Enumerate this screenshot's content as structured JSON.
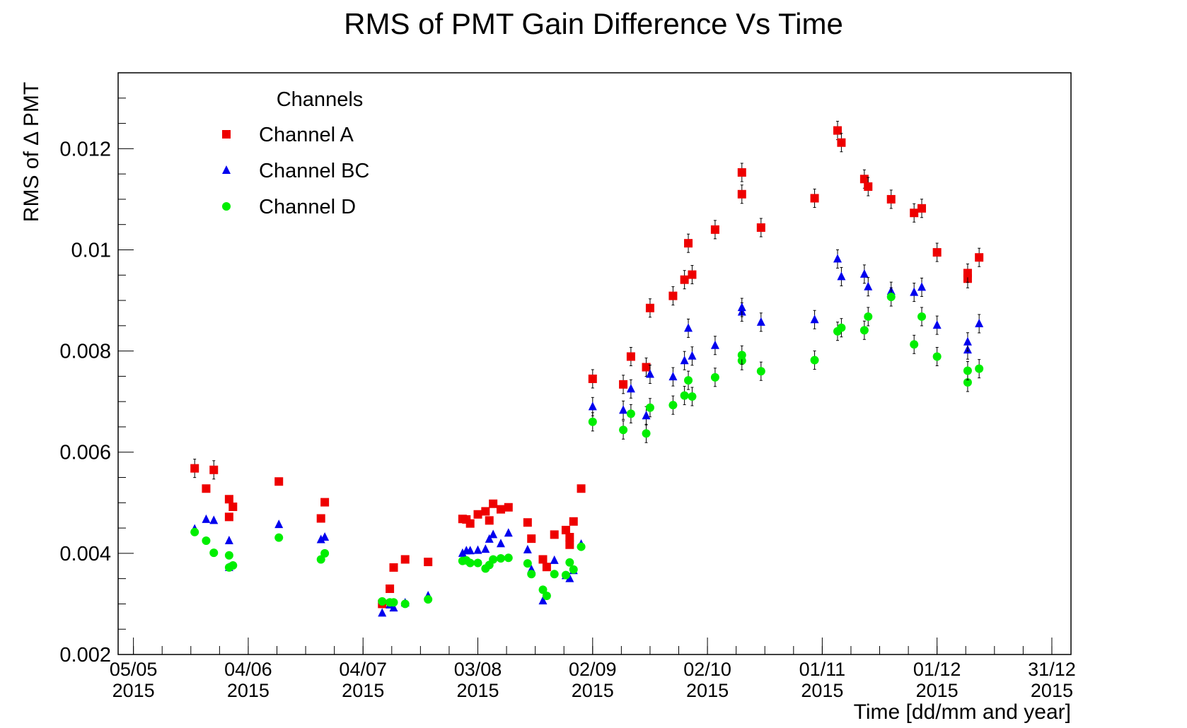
{
  "chart_data": {
    "type": "scatter",
    "title": "RMS of PMT Gain Difference Vs Time",
    "xlabel": "Time [dd/mm and year]",
    "ylabel": "RMS of Δ PMT",
    "x_scale": "date",
    "xlim": [
      "2015-05-01",
      "2016-01-05"
    ],
    "ylim": [
      0.002,
      0.0135
    ],
    "y_ticks": [
      "0.002",
      "0.004",
      "0.006",
      "0.008",
      "0.01",
      "0.012"
    ],
    "x_ticks": [
      {
        "date": "2015-05-05",
        "label": "05/05",
        "year": "2015"
      },
      {
        "date": "2015-06-04",
        "label": "04/06",
        "year": "2015"
      },
      {
        "date": "2015-07-04",
        "label": "04/07",
        "year": "2015"
      },
      {
        "date": "2015-08-03",
        "label": "03/08",
        "year": "2015"
      },
      {
        "date": "2015-09-02",
        "label": "02/09",
        "year": "2015"
      },
      {
        "date": "2015-10-02",
        "label": "02/10",
        "year": "2015"
      },
      {
        "date": "2015-11-01",
        "label": "01/11",
        "year": "2015"
      },
      {
        "date": "2015-12-01",
        "label": "01/12",
        "year": "2015"
      },
      {
        "date": "2015-12-31",
        "label": "31/12",
        "year": "2015"
      }
    ],
    "grid": false,
    "legend": {
      "title": "Channels",
      "placement": "top-left"
    },
    "series": [
      {
        "name": "Channel A",
        "color": "#ee0000",
        "marker": "square",
        "points": [
          [
            "2015-05-21",
            0.00568
          ],
          [
            "2015-05-24",
            0.00528
          ],
          [
            "2015-05-26",
            0.00565
          ],
          [
            "2015-05-30",
            0.00472
          ],
          [
            "2015-05-30",
            0.00507
          ],
          [
            "2015-05-31",
            0.00492
          ],
          [
            "2015-06-12",
            0.00542
          ],
          [
            "2015-06-23",
            0.00469
          ],
          [
            "2015-06-24",
            0.00501
          ],
          [
            "2015-07-09",
            0.003
          ],
          [
            "2015-07-11",
            0.0033
          ],
          [
            "2015-07-12",
            0.00372
          ],
          [
            "2015-07-15",
            0.00388
          ],
          [
            "2015-07-21",
            0.00383
          ],
          [
            "2015-07-30",
            0.00468
          ],
          [
            "2015-07-31",
            0.00467
          ],
          [
            "2015-08-01",
            0.00459
          ],
          [
            "2015-08-03",
            0.00477
          ],
          [
            "2015-08-05",
            0.00483
          ],
          [
            "2015-08-06",
            0.00465
          ],
          [
            "2015-08-07",
            0.00498
          ],
          [
            "2015-08-09",
            0.00487
          ],
          [
            "2015-08-11",
            0.00491
          ],
          [
            "2015-08-16",
            0.00461
          ],
          [
            "2015-08-17",
            0.00429
          ],
          [
            "2015-08-20",
            0.00388
          ],
          [
            "2015-08-21",
            0.00373
          ],
          [
            "2015-08-23",
            0.00437
          ],
          [
            "2015-08-26",
            0.00446
          ],
          [
            "2015-08-27",
            0.00417
          ],
          [
            "2015-08-27",
            0.00432
          ],
          [
            "2015-08-28",
            0.00463
          ],
          [
            "2015-08-30",
            0.00528
          ],
          [
            "2015-09-02",
            0.00745
          ],
          [
            "2015-09-10",
            0.00734
          ],
          [
            "2015-09-12",
            0.00789
          ],
          [
            "2015-09-16",
            0.00768
          ],
          [
            "2015-09-17",
            0.00885
          ],
          [
            "2015-09-23",
            0.00909
          ],
          [
            "2015-09-26",
            0.00941
          ],
          [
            "2015-09-27",
            0.01013
          ],
          [
            "2015-09-28",
            0.00951
          ],
          [
            "2015-10-04",
            0.0104
          ],
          [
            "2015-10-11",
            0.0111
          ],
          [
            "2015-10-11",
            0.01153
          ],
          [
            "2015-10-16",
            0.01044
          ],
          [
            "2015-10-30",
            0.01102
          ],
          [
            "2015-11-05",
            0.01236
          ],
          [
            "2015-11-06",
            0.01212
          ],
          [
            "2015-11-12",
            0.0114
          ],
          [
            "2015-11-13",
            0.01125
          ],
          [
            "2015-11-19",
            0.011
          ],
          [
            "2015-11-25",
            0.01073
          ],
          [
            "2015-11-27",
            0.01082
          ],
          [
            "2015-12-01",
            0.00995
          ],
          [
            "2015-12-09",
            0.00943
          ],
          [
            "2015-12-09",
            0.00954
          ],
          [
            "2015-12-12",
            0.00985
          ]
        ]
      },
      {
        "name": "Channel BC",
        "color": "#0000ee",
        "marker": "triangle",
        "points": [
          [
            "2015-05-21",
            0.00448
          ],
          [
            "2015-05-24",
            0.00467
          ],
          [
            "2015-05-26",
            0.00465
          ],
          [
            "2015-05-30",
            0.00425
          ],
          [
            "2015-05-30",
            0.00372
          ],
          [
            "2015-06-12",
            0.00457
          ],
          [
            "2015-06-23",
            0.00427
          ],
          [
            "2015-06-24",
            0.00432
          ],
          [
            "2015-07-09",
            0.00282
          ],
          [
            "2015-07-11",
            0.00298
          ],
          [
            "2015-07-12",
            0.00292
          ],
          [
            "2015-07-15",
            0.00302
          ],
          [
            "2015-07-21",
            0.00316
          ],
          [
            "2015-07-30",
            0.004
          ],
          [
            "2015-07-31",
            0.00405
          ],
          [
            "2015-08-01",
            0.00405
          ],
          [
            "2015-08-03",
            0.00406
          ],
          [
            "2015-08-05",
            0.00408
          ],
          [
            "2015-08-06",
            0.00428
          ],
          [
            "2015-08-07",
            0.00437
          ],
          [
            "2015-08-09",
            0.00419
          ],
          [
            "2015-08-11",
            0.0044
          ],
          [
            "2015-08-16",
            0.00407
          ],
          [
            "2015-08-17",
            0.00368
          ],
          [
            "2015-08-20",
            0.00306
          ],
          [
            "2015-08-23",
            0.00386
          ],
          [
            "2015-08-26",
            0.00356
          ],
          [
            "2015-08-27",
            0.0035
          ],
          [
            "2015-08-28",
            0.00366
          ],
          [
            "2015-08-30",
            0.00418
          ],
          [
            "2015-09-02",
            0.0069
          ],
          [
            "2015-09-10",
            0.00683
          ],
          [
            "2015-09-12",
            0.00725
          ],
          [
            "2015-09-16",
            0.00672
          ],
          [
            "2015-09-17",
            0.00754
          ],
          [
            "2015-09-23",
            0.00749
          ],
          [
            "2015-09-26",
            0.00781
          ],
          [
            "2015-09-27",
            0.00845
          ],
          [
            "2015-09-28",
            0.0079
          ],
          [
            "2015-10-04",
            0.00811
          ],
          [
            "2015-10-11",
            0.00877
          ],
          [
            "2015-10-11",
            0.00886
          ],
          [
            "2015-10-16",
            0.00857
          ],
          [
            "2015-10-30",
            0.00862
          ],
          [
            "2015-11-05",
            0.00982
          ],
          [
            "2015-11-06",
            0.00947
          ],
          [
            "2015-11-12",
            0.00952
          ],
          [
            "2015-11-13",
            0.00927
          ],
          [
            "2015-11-19",
            0.00918
          ],
          [
            "2015-11-25",
            0.00916
          ],
          [
            "2015-11-27",
            0.00926
          ],
          [
            "2015-12-01",
            0.00851
          ],
          [
            "2015-12-09",
            0.00802
          ],
          [
            "2015-12-09",
            0.00818
          ],
          [
            "2015-12-12",
            0.00854
          ]
        ]
      },
      {
        "name": "Channel D",
        "color": "#00ee00",
        "marker": "circle",
        "points": [
          [
            "2015-05-21",
            0.00442
          ],
          [
            "2015-05-24",
            0.00425
          ],
          [
            "2015-05-26",
            0.00401
          ],
          [
            "2015-05-30",
            0.00396
          ],
          [
            "2015-05-30",
            0.00372
          ],
          [
            "2015-05-31",
            0.00376
          ],
          [
            "2015-06-12",
            0.00431
          ],
          [
            "2015-06-23",
            0.00388
          ],
          [
            "2015-06-24",
            0.004
          ],
          [
            "2015-07-09",
            0.00305
          ],
          [
            "2015-07-11",
            0.00303
          ],
          [
            "2015-07-12",
            0.00303
          ],
          [
            "2015-07-15",
            0.003
          ],
          [
            "2015-07-21",
            0.00309
          ],
          [
            "2015-07-30",
            0.00385
          ],
          [
            "2015-07-31",
            0.00386
          ],
          [
            "2015-08-01",
            0.00381
          ],
          [
            "2015-08-03",
            0.00381
          ],
          [
            "2015-08-05",
            0.0037
          ],
          [
            "2015-08-06",
            0.00377
          ],
          [
            "2015-08-07",
            0.00388
          ],
          [
            "2015-08-09",
            0.0039
          ],
          [
            "2015-08-11",
            0.00391
          ],
          [
            "2015-08-16",
            0.0038
          ],
          [
            "2015-08-17",
            0.00359
          ],
          [
            "2015-08-20",
            0.00328
          ],
          [
            "2015-08-21",
            0.00316
          ],
          [
            "2015-08-23",
            0.00359
          ],
          [
            "2015-08-26",
            0.00357
          ],
          [
            "2015-08-27",
            0.00382
          ],
          [
            "2015-08-28",
            0.00368
          ],
          [
            "2015-08-30",
            0.00413
          ],
          [
            "2015-09-02",
            0.0066
          ],
          [
            "2015-09-10",
            0.00644
          ],
          [
            "2015-09-12",
            0.00676
          ],
          [
            "2015-09-16",
            0.00637
          ],
          [
            "2015-09-17",
            0.00688
          ],
          [
            "2015-09-23",
            0.00693
          ],
          [
            "2015-09-26",
            0.00712
          ],
          [
            "2015-09-27",
            0.00742
          ],
          [
            "2015-09-28",
            0.0071
          ],
          [
            "2015-10-04",
            0.00748
          ],
          [
            "2015-10-11",
            0.00781
          ],
          [
            "2015-10-11",
            0.00792
          ],
          [
            "2015-10-16",
            0.0076
          ],
          [
            "2015-10-30",
            0.00782
          ],
          [
            "2015-11-05",
            0.00839
          ],
          [
            "2015-11-06",
            0.00846
          ],
          [
            "2015-11-12",
            0.00841
          ],
          [
            "2015-11-13",
            0.00868
          ],
          [
            "2015-11-19",
            0.00907
          ],
          [
            "2015-11-25",
            0.00813
          ],
          [
            "2015-11-27",
            0.00868
          ],
          [
            "2015-12-01",
            0.00789
          ],
          [
            "2015-12-09",
            0.00738
          ],
          [
            "2015-12-09",
            0.00761
          ],
          [
            "2015-12-12",
            0.00765
          ]
        ]
      }
    ]
  }
}
